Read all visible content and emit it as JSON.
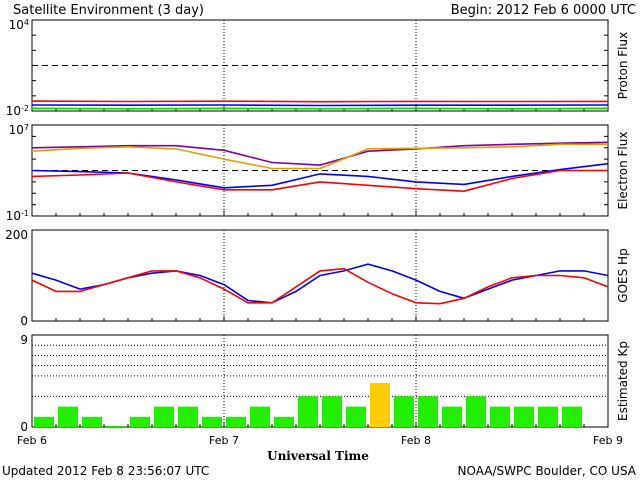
{
  "header": {
    "title": "Satellite Environment (3 day)",
    "begin": "Begin:  2012 Feb 6 0000 UTC"
  },
  "footer": {
    "updated": "Updated 2012 Feb  8 23:56:07 UTC",
    "credit": "NOAA/SWPC Boulder, CO USA"
  },
  "colors": {
    "red": "#ff0000",
    "blue": "#0000ff",
    "green": "#00e000",
    "purple": "#8000a0",
    "orange": "#e0a000",
    "kp_green": "#22ee00",
    "kp_yellow": "#ffcc00"
  },
  "chart_data": [
    {
      "type": "line",
      "panel": "proton",
      "ylabel": "Proton Flux",
      "yscale": "log",
      "ylim_exp": [
        -2,
        4
      ],
      "ytick_labels": [
        {
          "base": "10",
          "exp": "4"
        },
        {
          "base": "10",
          "exp": "-2"
        }
      ],
      "threshold": 10,
      "x": [
        0,
        12,
        24,
        36,
        48,
        60,
        72
      ],
      "series": [
        {
          "color": "red",
          "values": [
            0.045,
            0.042,
            0.044,
            0.041,
            0.043,
            0.042,
            0.043
          ]
        },
        {
          "color": "blue",
          "values": [
            0.025,
            0.024,
            0.025,
            0.023,
            0.024,
            0.024,
            0.025
          ]
        },
        {
          "color": "green",
          "values": [
            0.015,
            0.014,
            0.015,
            0.014,
            0.015,
            0.014,
            0.015
          ]
        }
      ]
    },
    {
      "type": "line",
      "panel": "electron",
      "ylabel": "Electron Flux",
      "yscale": "log",
      "ylim_exp": [
        -1,
        7
      ],
      "ytick_labels": [
        {
          "base": "10",
          "exp": "7"
        },
        {
          "base": "10",
          "exp": "-1"
        }
      ],
      "threshold": 1000,
      "x": [
        0,
        6,
        12,
        18,
        24,
        30,
        36,
        42,
        48,
        54,
        60,
        66,
        72
      ],
      "series": [
        {
          "color": "purple",
          "values": [
            100000,
            120000,
            150000,
            150000,
            60000,
            5000,
            3000,
            50000,
            80000,
            150000,
            200000,
            250000,
            300000
          ]
        },
        {
          "color": "orange",
          "values": [
            50000,
            90000,
            120000,
            80000,
            10000,
            1500,
            1500,
            80000,
            90000,
            100000,
            120000,
            200000,
            200000
          ]
        },
        {
          "color": "blue",
          "values": [
            1000,
            800,
            600,
            150,
            30,
            50,
            500,
            300,
            100,
            60,
            300,
            1200,
            4000
          ]
        },
        {
          "color": "red",
          "values": [
            300,
            400,
            600,
            100,
            20,
            20,
            100,
            50,
            25,
            15,
            200,
            1000,
            1000
          ]
        }
      ]
    },
    {
      "type": "line",
      "panel": "hp",
      "ylabel": "GOES Hp",
      "ylim": [
        0,
        200
      ],
      "ytick_labels": [
        "200",
        "0"
      ],
      "x": [
        0,
        3,
        6,
        9,
        12,
        15,
        18,
        21,
        24,
        27,
        30,
        33,
        36,
        39,
        42,
        45,
        48,
        51,
        54,
        57,
        60,
        63,
        66,
        69,
        72
      ],
      "series": [
        {
          "color": "blue",
          "values": [
            105,
            90,
            70,
            80,
            95,
            105,
            110,
            100,
            80,
            45,
            40,
            65,
            100,
            110,
            125,
            110,
            90,
            65,
            50,
            70,
            90,
            100,
            110,
            110,
            100
          ]
        },
        {
          "color": "red",
          "values": [
            90,
            65,
            65,
            80,
            95,
            110,
            110,
            95,
            70,
            40,
            40,
            75,
            110,
            115,
            85,
            60,
            40,
            38,
            50,
            75,
            95,
            100,
            100,
            95,
            75
          ]
        }
      ]
    },
    {
      "type": "bar",
      "panel": "kp",
      "ylabel": "Estimated Kp",
      "ylim": [
        0,
        9
      ],
      "ytick_labels": [
        "9",
        "0"
      ],
      "bar_hours": 3,
      "values": [
        1,
        2,
        1,
        0.1,
        1,
        2,
        2,
        1,
        1,
        2,
        1,
        3,
        3,
        2,
        4.3,
        3,
        3,
        2,
        3,
        2,
        2,
        2,
        2
      ],
      "colors": [
        "kp_green",
        "kp_green",
        "kp_green",
        "kp_green",
        "kp_green",
        "kp_green",
        "kp_green",
        "kp_green",
        "kp_green",
        "kp_green",
        "kp_green",
        "kp_green",
        "kp_green",
        "kp_green",
        "kp_yellow",
        "kp_green",
        "kp_green",
        "kp_green",
        "kp_green",
        "kp_green",
        "kp_green",
        "kp_green",
        "kp_green"
      ]
    }
  ],
  "xaxis": {
    "label": "Universal Time",
    "ticks": [
      {
        "hour": 0,
        "label": "Feb 6"
      },
      {
        "hour": 24,
        "label": "Feb 7"
      },
      {
        "hour": 48,
        "label": "Feb 8"
      },
      {
        "hour": 72,
        "label": "Feb 9"
      }
    ],
    "range": [
      0,
      72
    ]
  }
}
